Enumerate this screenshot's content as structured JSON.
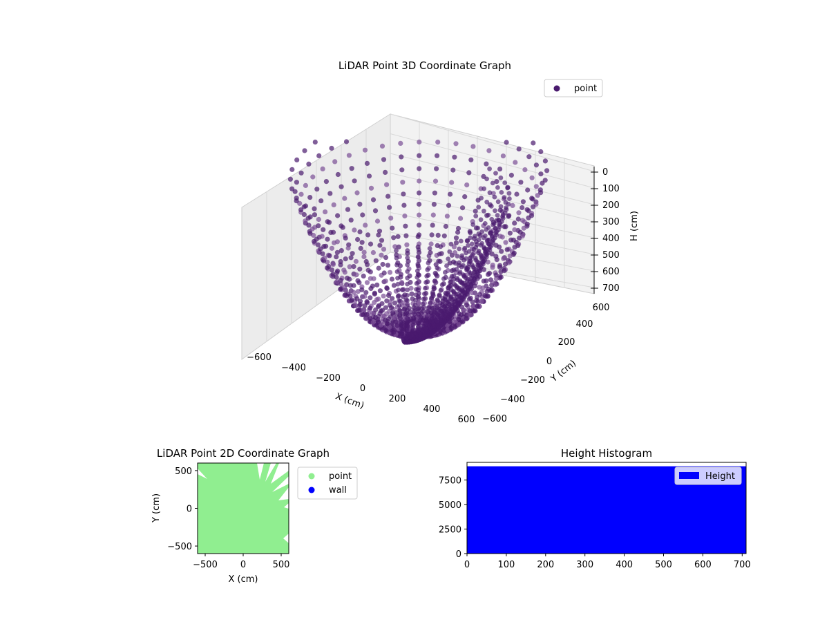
{
  "colors": {
    "point3d": "#4a1a6e",
    "point3d_light": "#7a4f95",
    "point2d": "#90ee90",
    "wall": "#0000ff",
    "hist": "#0000ff",
    "pane": "#f2f2f2",
    "grid": "#d9d9d9"
  },
  "chart_data": [
    {
      "type": "scatter",
      "subtype": "scatter3d",
      "title": "LiDAR Point 3D Coordinate Graph",
      "xlabel": "X (cm)",
      "ylabel": "Y (cm)",
      "zlabel": "H (cm)",
      "xticks": [
        "−600",
        "−400",
        "−200",
        "0",
        "200",
        "400",
        "600"
      ],
      "yticks": [
        "−600",
        "−400",
        "−200",
        "0",
        "200",
        "400",
        "600"
      ],
      "zticks": [
        "0",
        "100",
        "200",
        "300",
        "400",
        "500",
        "600",
        "700"
      ],
      "xlim": [
        -600,
        600
      ],
      "ylim": [
        -600,
        600
      ],
      "zlim": [
        700,
        0
      ],
      "z_inverted": true,
      "legend": {
        "position": "top-right",
        "entries": [
          {
            "label": "point"
          }
        ]
      },
      "series": [
        {
          "name": "point",
          "description_values": {
            "ring_count": 24,
            "height_max": 700
          }
        }
      ]
    },
    {
      "type": "scatter",
      "title": "LiDAR Point 2D Coordinate Graph",
      "xlabel": "X (cm)",
      "ylabel": "Y (cm)",
      "xticks": [
        "−500",
        "0",
        "500"
      ],
      "yticks": [
        "−500",
        "0",
        "500"
      ],
      "xlim": [
        -600,
        600
      ],
      "ylim": [
        -600,
        600
      ],
      "legend": {
        "position": "outside-right",
        "entries": [
          {
            "label": "point"
          },
          {
            "label": "wall"
          }
        ]
      }
    },
    {
      "type": "bar",
      "subtype": "histogram",
      "title": "Height Histogram",
      "xticks": [
        "0",
        "100",
        "200",
        "300",
        "400",
        "500",
        "600",
        "700"
      ],
      "yticks": [
        "0",
        "2500",
        "5000",
        "7500"
      ],
      "xlim": [
        0,
        710
      ],
      "ylim": [
        0,
        9300
      ],
      "bin_range": [
        0,
        710
      ],
      "bin_count": 8900,
      "legend": {
        "position": "top-right",
        "entries": [
          {
            "label": "Height"
          }
        ]
      }
    }
  ]
}
